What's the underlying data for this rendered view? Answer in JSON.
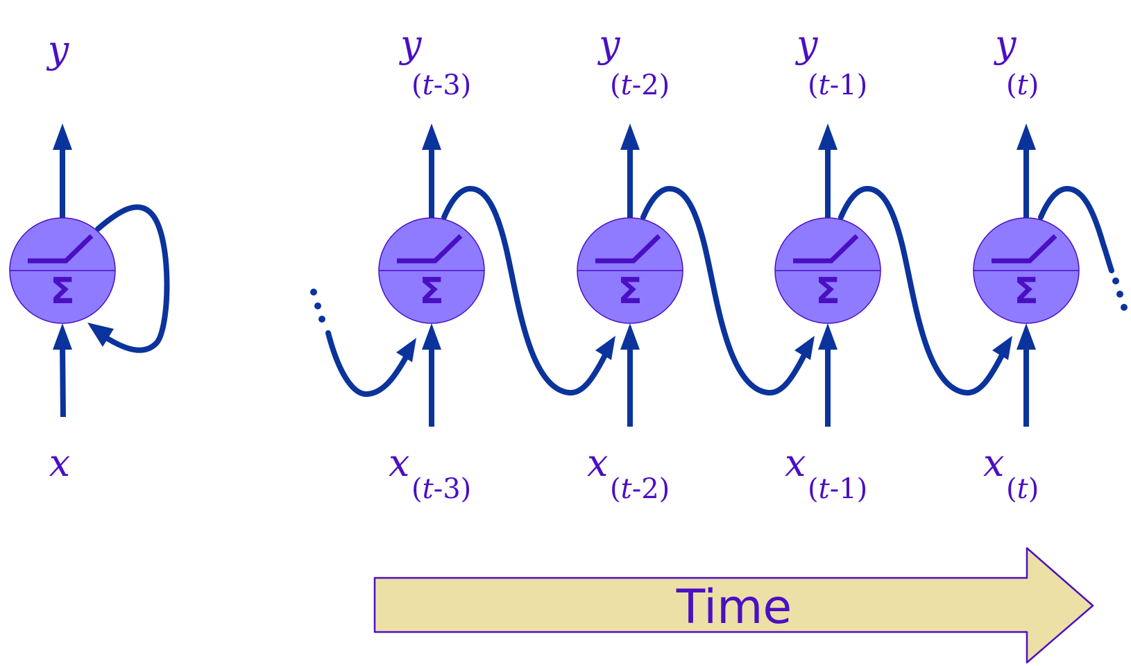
{
  "folded": {
    "output_label": "y",
    "input_label": "x"
  },
  "time_steps": [
    {
      "y": "y",
      "x": "x",
      "sub_open": "(",
      "sub_t": "t",
      "sub_rest": "-3)"
    },
    {
      "y": "y",
      "x": "x",
      "sub_open": "(",
      "sub_t": "t",
      "sub_rest": "-2)"
    },
    {
      "y": "y",
      "x": "x",
      "sub_open": "(",
      "sub_t": "t",
      "sub_rest": "-1)"
    },
    {
      "y": "y",
      "x": "x",
      "sub_open": "(",
      "sub_t": "t",
      "sub_rest": ")"
    }
  ],
  "neuron": {
    "sum_symbol": "Σ",
    "fill_color": "#8f7bff",
    "line_color": "#4b0fc3"
  },
  "time_arrow": {
    "label": "Time",
    "fill_color": "#ece0a6",
    "border_color": "#4b0fc3"
  },
  "colors": {
    "wire": "#0b339c",
    "text": "#4b0fc3"
  }
}
